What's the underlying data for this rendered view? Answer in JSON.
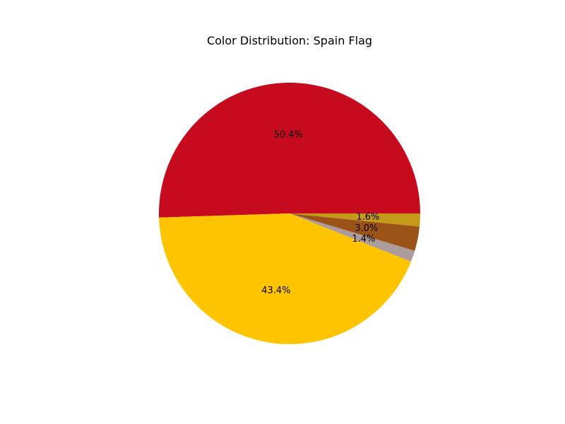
{
  "chart_data": {
    "type": "pie",
    "title": "Color Distribution: Spain Flag",
    "start_angle_deg": 0,
    "direction": "counterclockwise",
    "slices": [
      {
        "value": 50.4,
        "label": "50.4%",
        "color": "#c60b1e"
      },
      {
        "value": 43.4,
        "label": "43.4%",
        "color": "#ffc400"
      },
      {
        "value": 1.4,
        "label": "1.4%",
        "color": "#ad9c9c"
      },
      {
        "value": 3.0,
        "label": "3.0%",
        "color": "#9c5318"
      },
      {
        "value": 1.6,
        "label": "1.6%",
        "color": "#c59a1a"
      }
    ]
  }
}
